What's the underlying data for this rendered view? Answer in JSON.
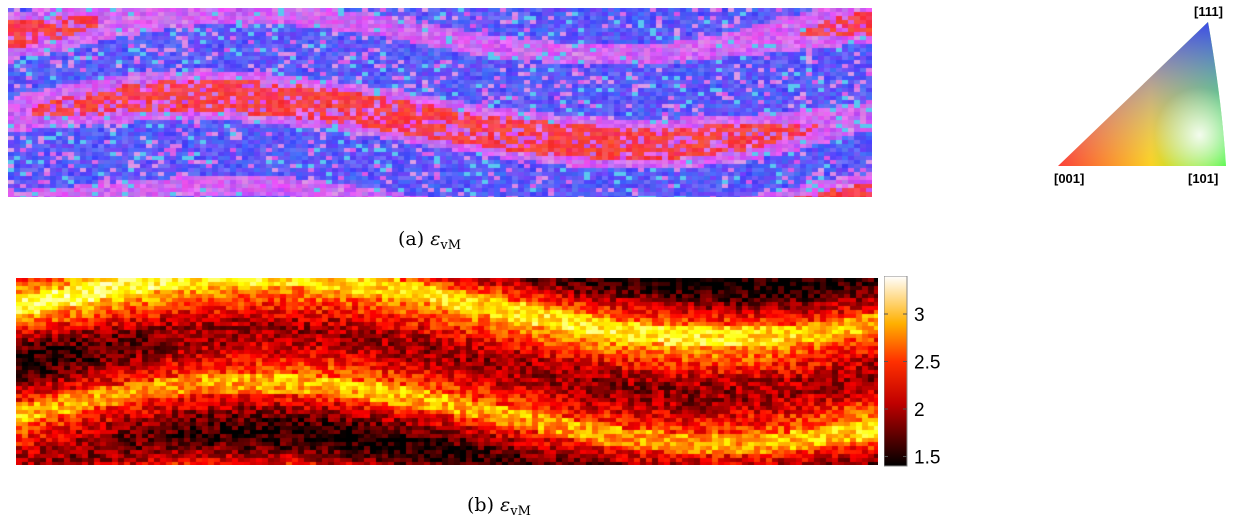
{
  "figure": {
    "captions": [
      {
        "tag": "(a)",
        "symbol": "ε",
        "subscript": "vM"
      },
      {
        "tag": "(b)",
        "symbol": "ε",
        "subscript": "vM"
      }
    ]
  },
  "ipf_key": {
    "corner_labels": [
      "[001]",
      "[101]",
      "[111]"
    ],
    "corner_colors": [
      "#ff0000",
      "#00ff00",
      "#0000ff"
    ]
  },
  "chart_data": [
    {
      "type": "heatmap",
      "title": "",
      "description_colors": [
        "#ff2a2a",
        "#e040e0",
        "#3a3aff",
        "#8060ff"
      ],
      "colormap": "inverse pole figure (RGB)"
    },
    {
      "type": "heatmap",
      "title": "",
      "colormap": "hot",
      "colorbar": {
        "range": [
          1.4,
          3.4
        ],
        "ticks": [
          1.5,
          2,
          2.5,
          3
        ],
        "tick_labels": [
          "1.5",
          "2",
          "2.5",
          "3"
        ]
      }
    }
  ]
}
